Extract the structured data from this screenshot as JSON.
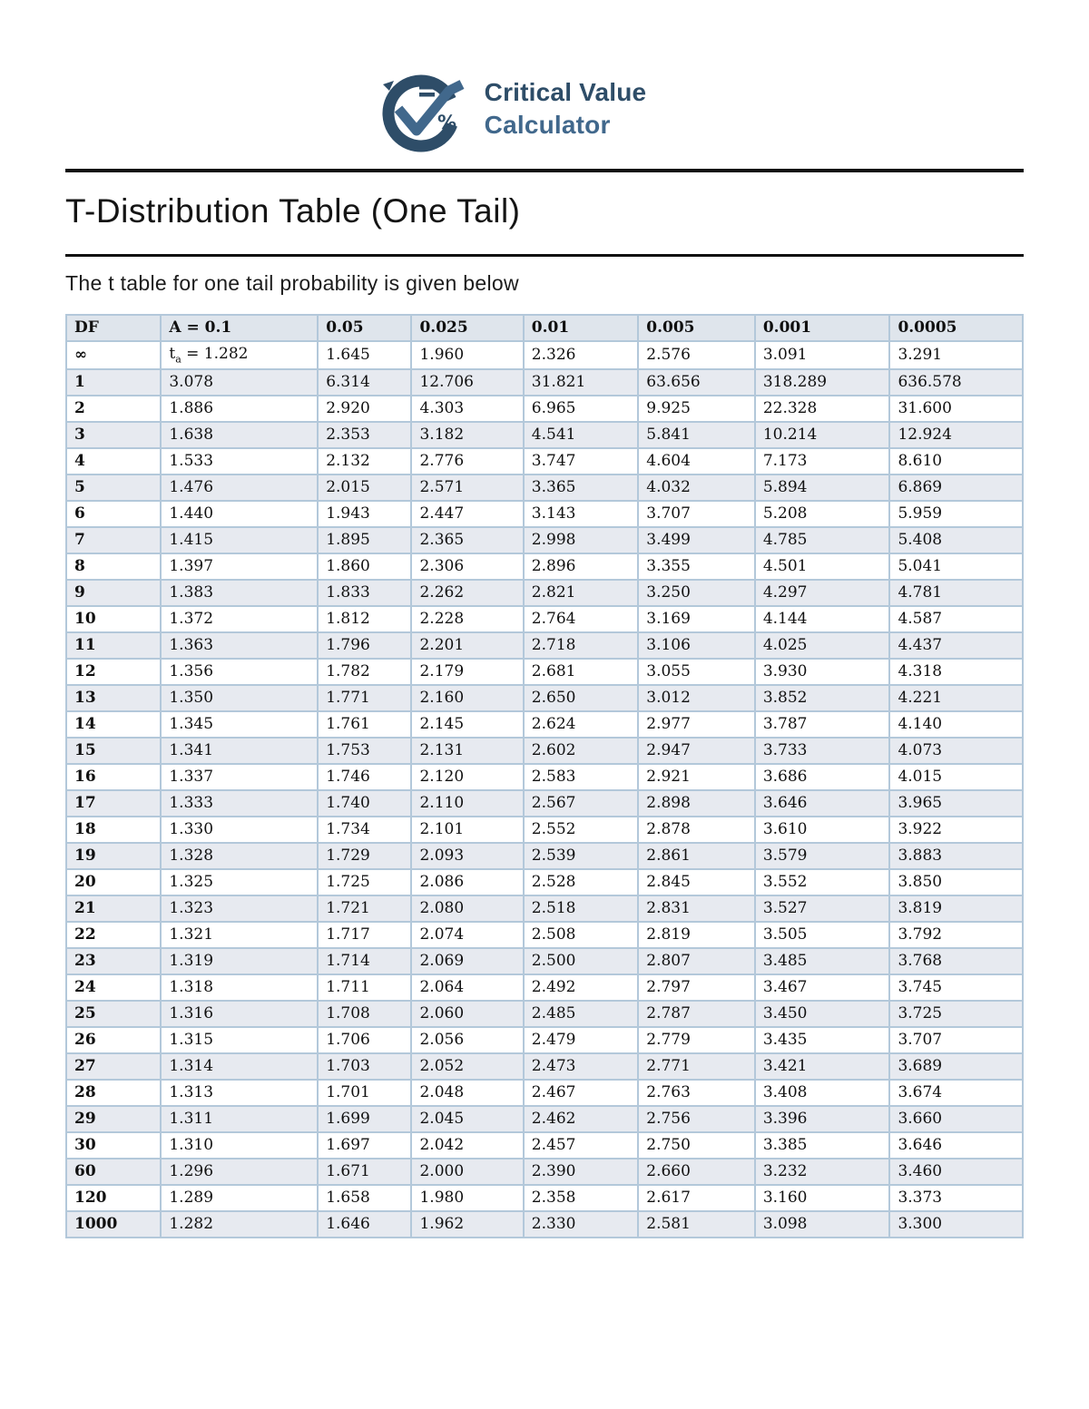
{
  "logo": {
    "title_line1": "Critical Value",
    "title_line2": "Calculator",
    "icon_name": "checkmark-c-logo",
    "equals_glyph": "=",
    "percent_glyph": "%",
    "colors": {
      "dark_navy": "#2e4d68",
      "steel_blue": "#41688c"
    }
  },
  "page": {
    "title": "T-Distribution Table (One Tail)",
    "subtitle": "The t table for one tail probability is given below"
  },
  "table": {
    "columns": [
      "DF",
      "A = 0.1",
      "0.05",
      "0.025",
      "0.01",
      "0.005",
      "0.001",
      "0.0005"
    ],
    "column_widths_pct": [
      9.9,
      16.4,
      9.8,
      11.7,
      12.0,
      12.2,
      14.1,
      13.9
    ],
    "colors": {
      "header_bg": "#dfe5ec",
      "stripe_bg": "#e7eaf0",
      "border": "#b3c8da"
    },
    "rows": [
      {
        "df": "∞",
        "values": [
          "t{a} = 1.282",
          "1.645",
          "1.960",
          "2.326",
          "2.576",
          "3.091",
          "3.291"
        ]
      },
      {
        "df": "1",
        "values": [
          "3.078",
          "6.314",
          "12.706",
          "31.821",
          "63.656",
          "318.289",
          "636.578"
        ]
      },
      {
        "df": "2",
        "values": [
          "1.886",
          "2.920",
          "4.303",
          "6.965",
          "9.925",
          "22.328",
          "31.600"
        ]
      },
      {
        "df": "3",
        "values": [
          "1.638",
          "2.353",
          "3.182",
          "4.541",
          "5.841",
          "10.214",
          "12.924"
        ]
      },
      {
        "df": "4",
        "values": [
          "1.533",
          "2.132",
          "2.776",
          "3.747",
          "4.604",
          "7.173",
          "8.610"
        ]
      },
      {
        "df": "5",
        "values": [
          "1.476",
          "2.015",
          "2.571",
          "3.365",
          "4.032",
          "5.894",
          "6.869"
        ]
      },
      {
        "df": "6",
        "values": [
          "1.440",
          "1.943",
          "2.447",
          "3.143",
          "3.707",
          "5.208",
          "5.959"
        ]
      },
      {
        "df": "7",
        "values": [
          "1.415",
          "1.895",
          "2.365",
          "2.998",
          "3.499",
          "4.785",
          "5.408"
        ]
      },
      {
        "df": "8",
        "values": [
          "1.397",
          "1.860",
          "2.306",
          "2.896",
          "3.355",
          "4.501",
          "5.041"
        ]
      },
      {
        "df": "9",
        "values": [
          "1.383",
          "1.833",
          "2.262",
          "2.821",
          "3.250",
          "4.297",
          "4.781"
        ]
      },
      {
        "df": "10",
        "values": [
          "1.372",
          "1.812",
          "2.228",
          "2.764",
          "3.169",
          "4.144",
          "4.587"
        ]
      },
      {
        "df": "11",
        "values": [
          "1.363",
          "1.796",
          "2.201",
          "2.718",
          "3.106",
          "4.025",
          "4.437"
        ]
      },
      {
        "df": "12",
        "values": [
          "1.356",
          "1.782",
          "2.179",
          "2.681",
          "3.055",
          "3.930",
          "4.318"
        ]
      },
      {
        "df": "13",
        "values": [
          "1.350",
          "1.771",
          "2.160",
          "2.650",
          "3.012",
          "3.852",
          "4.221"
        ]
      },
      {
        "df": "14",
        "values": [
          "1.345",
          "1.761",
          "2.145",
          "2.624",
          "2.977",
          "3.787",
          "4.140"
        ]
      },
      {
        "df": "15",
        "values": [
          "1.341",
          "1.753",
          "2.131",
          "2.602",
          "2.947",
          "3.733",
          "4.073"
        ]
      },
      {
        "df": "16",
        "values": [
          "1.337",
          "1.746",
          "2.120",
          "2.583",
          "2.921",
          "3.686",
          "4.015"
        ]
      },
      {
        "df": "17",
        "values": [
          "1.333",
          "1.740",
          "2.110",
          "2.567",
          "2.898",
          "3.646",
          "3.965"
        ]
      },
      {
        "df": "18",
        "values": [
          "1.330",
          "1.734",
          "2.101",
          "2.552",
          "2.878",
          "3.610",
          "3.922"
        ]
      },
      {
        "df": "19",
        "values": [
          "1.328",
          "1.729",
          "2.093",
          "2.539",
          "2.861",
          "3.579",
          "3.883"
        ]
      },
      {
        "df": "20",
        "values": [
          "1.325",
          "1.725",
          "2.086",
          "2.528",
          "2.845",
          "3.552",
          "3.850"
        ]
      },
      {
        "df": "21",
        "values": [
          "1.323",
          "1.721",
          "2.080",
          "2.518",
          "2.831",
          "3.527",
          "3.819"
        ]
      },
      {
        "df": "22",
        "values": [
          "1.321",
          "1.717",
          "2.074",
          "2.508",
          "2.819",
          "3.505",
          "3.792"
        ]
      },
      {
        "df": "23",
        "values": [
          "1.319",
          "1.714",
          "2.069",
          "2.500",
          "2.807",
          "3.485",
          "3.768"
        ]
      },
      {
        "df": "24",
        "values": [
          "1.318",
          "1.711",
          "2.064",
          "2.492",
          "2.797",
          "3.467",
          "3.745"
        ]
      },
      {
        "df": "25",
        "values": [
          "1.316",
          "1.708",
          "2.060",
          "2.485",
          "2.787",
          "3.450",
          "3.725"
        ]
      },
      {
        "df": "26",
        "values": [
          "1.315",
          "1.706",
          "2.056",
          "2.479",
          "2.779",
          "3.435",
          "3.707"
        ]
      },
      {
        "df": "27",
        "values": [
          "1.314",
          "1.703",
          "2.052",
          "2.473",
          "2.771",
          "3.421",
          "3.689"
        ]
      },
      {
        "df": "28",
        "values": [
          "1.313",
          "1.701",
          "2.048",
          "2.467",
          "2.763",
          "3.408",
          "3.674"
        ]
      },
      {
        "df": "29",
        "values": [
          "1.311",
          "1.699",
          "2.045",
          "2.462",
          "2.756",
          "3.396",
          "3.660"
        ]
      },
      {
        "df": "30",
        "values": [
          "1.310",
          "1.697",
          "2.042",
          "2.457",
          "2.750",
          "3.385",
          "3.646"
        ]
      },
      {
        "df": "60",
        "values": [
          "1.296",
          "1.671",
          "2.000",
          "2.390",
          "2.660",
          "3.232",
          "3.460"
        ]
      },
      {
        "df": "120",
        "values": [
          "1.289",
          "1.658",
          "1.980",
          "2.358",
          "2.617",
          "3.160",
          "3.373"
        ]
      },
      {
        "df": "1000",
        "values": [
          "1.282",
          "1.646",
          "1.962",
          "2.330",
          "2.581",
          "3.098",
          "3.300"
        ]
      }
    ]
  }
}
